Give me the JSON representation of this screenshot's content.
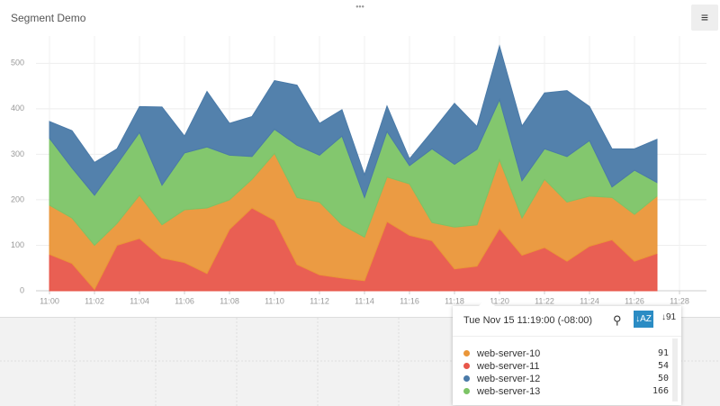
{
  "header": {
    "title": "Segment Demo"
  },
  "chart_data": {
    "type": "stacked-area",
    "x": [
      "11:00",
      null,
      "11:02",
      null,
      "11:04",
      null,
      "11:06",
      null,
      "11:08",
      null,
      "11:10",
      null,
      "11:12",
      null,
      "11:14",
      null,
      "11:16",
      null,
      "11:18",
      null,
      "11:20",
      null,
      "11:22",
      null,
      "11:24",
      null,
      "11:26",
      null,
      "11:28"
    ],
    "series": [
      {
        "name": "web-server-11",
        "color": "#e8564a",
        "values": [
          80,
          60,
          3,
          100,
          115,
          72,
          62,
          38,
          135,
          182,
          155,
          58,
          35,
          28,
          22,
          152,
          122,
          110,
          48,
          54,
          137,
          78,
          95,
          65,
          98,
          112,
          65,
          82,
          null
        ]
      },
      {
        "name": "web-server-10",
        "color": "#ea9639",
        "values": [
          108,
          100,
          97,
          48,
          95,
          73,
          116,
          144,
          65,
          63,
          147,
          147,
          160,
          117,
          96,
          98,
          113,
          40,
          92,
          91,
          151,
          82,
          150,
          130,
          110,
          93,
          103,
          126,
          null
        ]
      },
      {
        "name": "web-server-13",
        "color": "#7cc466",
        "values": [
          147,
          110,
          110,
          130,
          138,
          87,
          125,
          134,
          98,
          50,
          53,
          115,
          103,
          195,
          87,
          100,
          40,
          162,
          138,
          166,
          132,
          82,
          67,
          100,
          122,
          23,
          97,
          30,
          null
        ]
      },
      {
        "name": "web-server-12",
        "color": "#4a7aa8",
        "values": [
          37,
          82,
          72,
          34,
          57,
          172,
          37,
          122,
          70,
          88,
          107,
          132,
          70,
          58,
          50,
          56,
          15,
          38,
          134,
          50,
          118,
          120,
          123,
          145,
          75,
          84,
          47,
          95,
          null
        ]
      }
    ],
    "ylim": [
      0,
      560
    ],
    "yticks": [
      0,
      100,
      200,
      300,
      400,
      500
    ],
    "grid": true
  },
  "tooltip": {
    "time": "Tue Nov 15 11:19:00 (-08:00)"
  }
}
